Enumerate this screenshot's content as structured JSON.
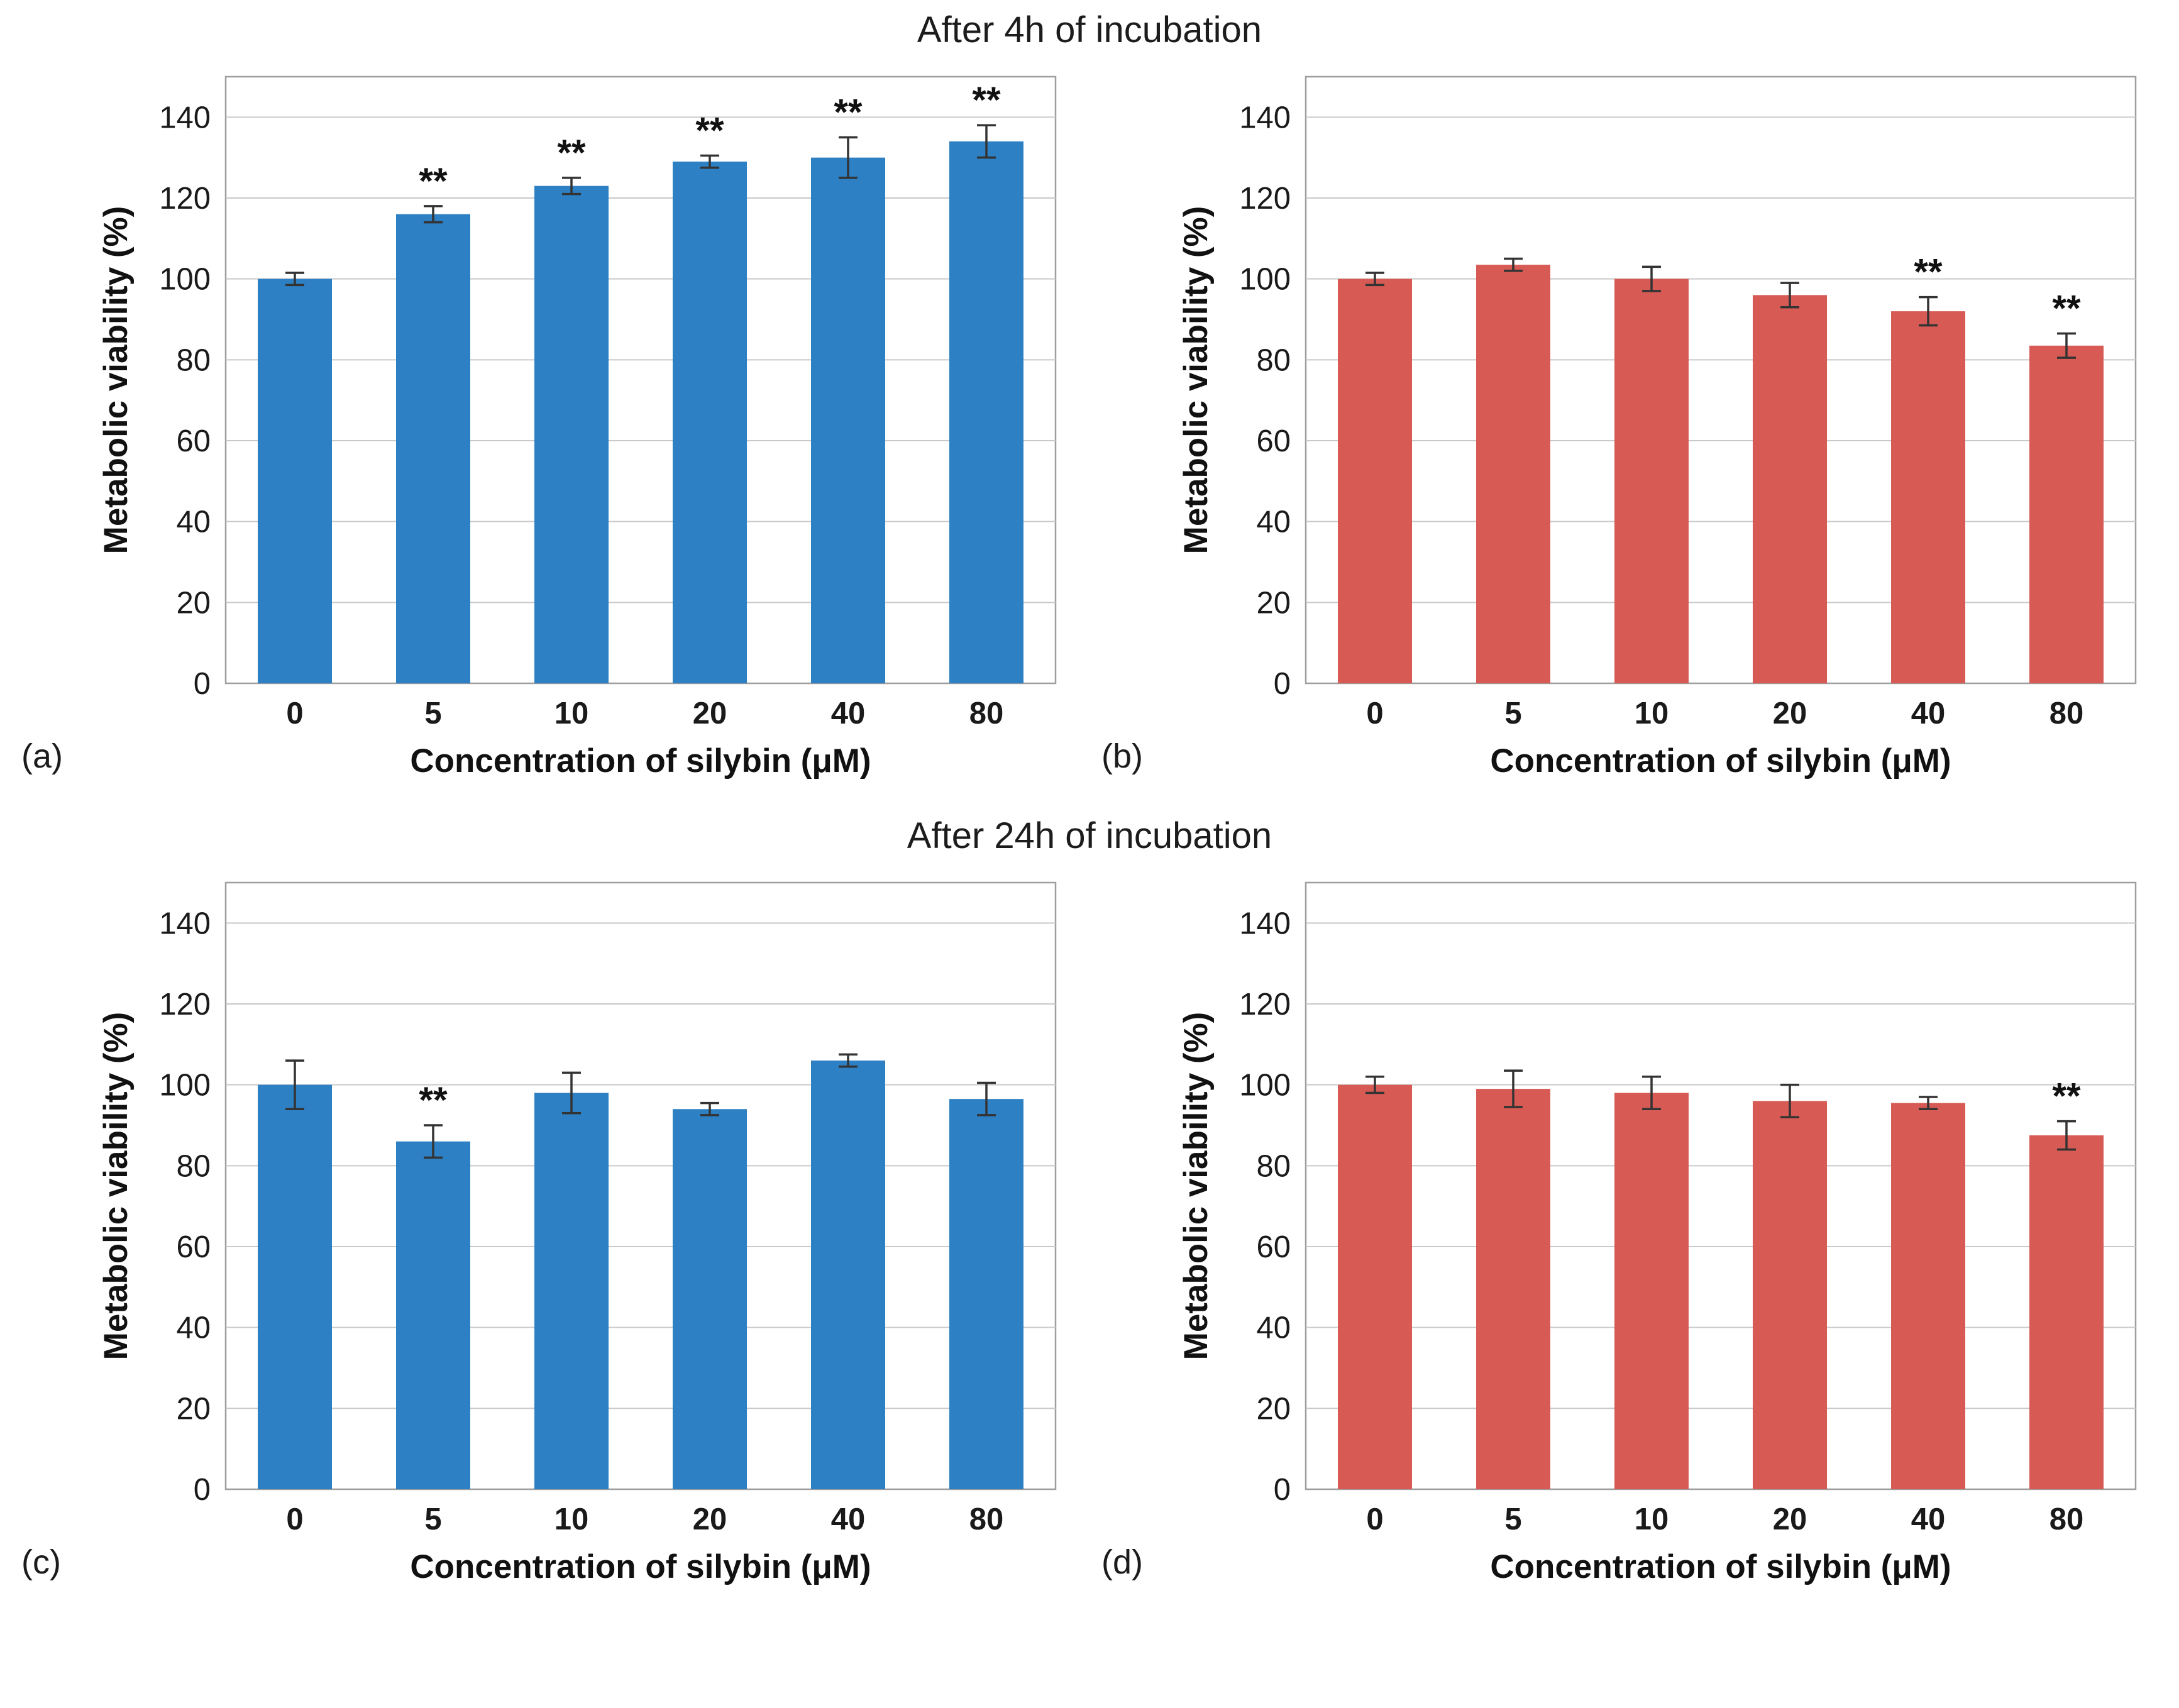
{
  "figure": {
    "top_group_title": "After 4h of incubation",
    "bottom_group_title": "After 24h of incubation"
  },
  "colors": {
    "blue": "#2d80c3",
    "red": "#d75b54",
    "gridline": "#c9c9c9",
    "plot_border": "#9e9e9e",
    "error_bar": "#333333",
    "text": "#1a1a1a"
  },
  "chart_data": [
    {
      "panel_label": "(a)",
      "type": "bar",
      "group_title": "After 4h of incubation",
      "color": "blue",
      "categories": [
        "0",
        "5",
        "10",
        "20",
        "40",
        "80"
      ],
      "values": [
        100,
        116,
        123,
        129,
        130,
        134
      ],
      "errors": [
        1.5,
        2,
        2,
        1.5,
        5,
        4
      ],
      "sig": [
        "",
        "**",
        "**",
        "**",
        "**",
        "**"
      ],
      "ylabel": "Metabolic viability (%)",
      "xlabel": "Concentration of silybin (μM)",
      "ylim": [
        0,
        150
      ],
      "yticks": [
        0,
        20,
        40,
        60,
        80,
        100,
        120,
        140
      ],
      "grid": true,
      "legend": "none"
    },
    {
      "panel_label": "(b)",
      "type": "bar",
      "group_title": "After 4h of incubation",
      "color": "red",
      "categories": [
        "0",
        "5",
        "10",
        "20",
        "40",
        "80"
      ],
      "values": [
        100,
        103.5,
        100,
        96,
        92,
        83.5
      ],
      "errors": [
        1.5,
        1.5,
        3,
        3,
        3.5,
        3
      ],
      "sig": [
        "",
        "",
        "",
        "",
        "**",
        "**"
      ],
      "ylabel": "Metabolic viability (%)",
      "xlabel": "Concentration of silybin (μM)",
      "ylim": [
        0,
        150
      ],
      "yticks": [
        0,
        20,
        40,
        60,
        80,
        100,
        120,
        140
      ],
      "grid": true,
      "legend": "none"
    },
    {
      "panel_label": "(c)",
      "type": "bar",
      "group_title": "After 24h of incubation",
      "color": "blue",
      "categories": [
        "0",
        "5",
        "10",
        "20",
        "40",
        "80"
      ],
      "values": [
        100,
        86,
        98,
        94,
        106,
        96.5
      ],
      "errors": [
        6,
        4,
        5,
        1.5,
        1.5,
        4
      ],
      "sig": [
        "",
        "**",
        "",
        "",
        "",
        ""
      ],
      "ylabel": "Metabolic viability (%)",
      "xlabel": "Concentration of silybin (μM)",
      "ylim": [
        0,
        150
      ],
      "yticks": [
        0,
        20,
        40,
        60,
        80,
        100,
        120,
        140
      ],
      "grid": true,
      "legend": "none"
    },
    {
      "panel_label": "(d)",
      "type": "bar",
      "group_title": "After 24h of incubation",
      "color": "red",
      "categories": [
        "0",
        "5",
        "10",
        "20",
        "40",
        "80"
      ],
      "values": [
        100,
        99,
        98,
        96,
        95.5,
        87.5
      ],
      "errors": [
        2,
        4.5,
        4,
        4,
        1.5,
        3.5
      ],
      "sig": [
        "",
        "",
        "",
        "",
        "",
        "**"
      ],
      "ylabel": "Metabolic viability (%)",
      "xlabel": "Concentration of silybin (μM)",
      "ylim": [
        0,
        150
      ],
      "yticks": [
        0,
        20,
        40,
        60,
        80,
        100,
        120,
        140
      ],
      "grid": true,
      "legend": "none"
    }
  ]
}
